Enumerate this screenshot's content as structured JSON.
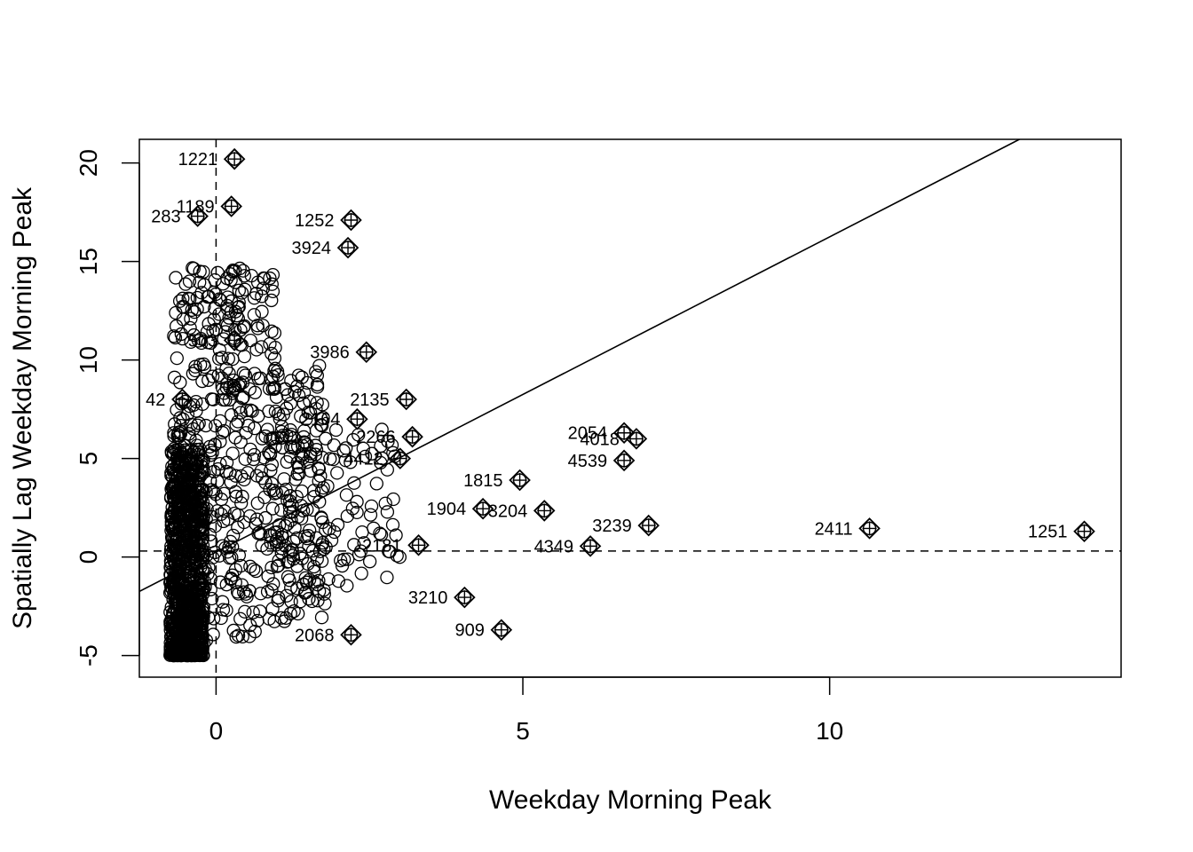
{
  "chart_data": {
    "type": "scatter",
    "title": "",
    "xlabel": "Weekday Morning Peak",
    "ylabel": "Spatially Lag Weekday Morning Peak",
    "xlim": [
      -1.25,
      14.75
    ],
    "ylim": [
      -6.1,
      21.2
    ],
    "x_ticks": [
      0,
      5,
      10
    ],
    "y_ticks": [
      -5,
      0,
      5,
      10,
      15,
      20
    ],
    "grid": false,
    "regression_line": {
      "intercept": 0.25,
      "slope": 1.6
    },
    "reference_lines": {
      "vertical_x": 0,
      "horizontal_y": 0.3
    },
    "influential_points": [
      {
        "x": 0.3,
        "y": 20.2,
        "label": "1221"
      },
      {
        "x": 0.25,
        "y": 17.8,
        "label": "1189"
      },
      {
        "x": -0.3,
        "y": 17.3,
        "label": "283"
      },
      {
        "x": 2.2,
        "y": 17.1,
        "label": "1252"
      },
      {
        "x": 2.15,
        "y": 15.7,
        "label": "3924"
      },
      {
        "x": 2.45,
        "y": 10.4,
        "label": "3986"
      },
      {
        "x": 3.1,
        "y": 8.0,
        "label": "2135"
      },
      {
        "x": 2.3,
        "y": 7.0,
        "label": "2164"
      },
      {
        "x": 6.65,
        "y": 6.3,
        "label": "2054"
      },
      {
        "x": 6.85,
        "y": 6.0,
        "label": "4018"
      },
      {
        "x": 6.65,
        "y": 4.9,
        "label": "4539"
      },
      {
        "x": 4.95,
        "y": 3.9,
        "label": "1815"
      },
      {
        "x": 4.35,
        "y": 2.45,
        "label": "1904"
      },
      {
        "x": 5.35,
        "y": 2.35,
        "label": "3204"
      },
      {
        "x": 7.05,
        "y": 1.6,
        "label": "3239"
      },
      {
        "x": 10.65,
        "y": 1.45,
        "label": "2411"
      },
      {
        "x": 14.15,
        "y": 1.3,
        "label": "1251"
      },
      {
        "x": 6.1,
        "y": 0.55,
        "label": "4349"
      },
      {
        "x": 4.05,
        "y": -2.05,
        "label": "3210"
      },
      {
        "x": 4.65,
        "y": -3.7,
        "label": "909"
      },
      {
        "x": 2.2,
        "y": -3.95,
        "label": "2068"
      },
      {
        "x": -0.55,
        "y": 8.0,
        "label": "42"
      },
      {
        "x": 0.3,
        "y": 11.0,
        "label": "503"
      },
      {
        "x": 3.2,
        "y": 6.1,
        "label": "2266"
      },
      {
        "x": 3.0,
        "y": 5.0,
        "label": "4412"
      },
      {
        "x": 3.3,
        "y": 0.6,
        "label": "2181"
      }
    ]
  }
}
